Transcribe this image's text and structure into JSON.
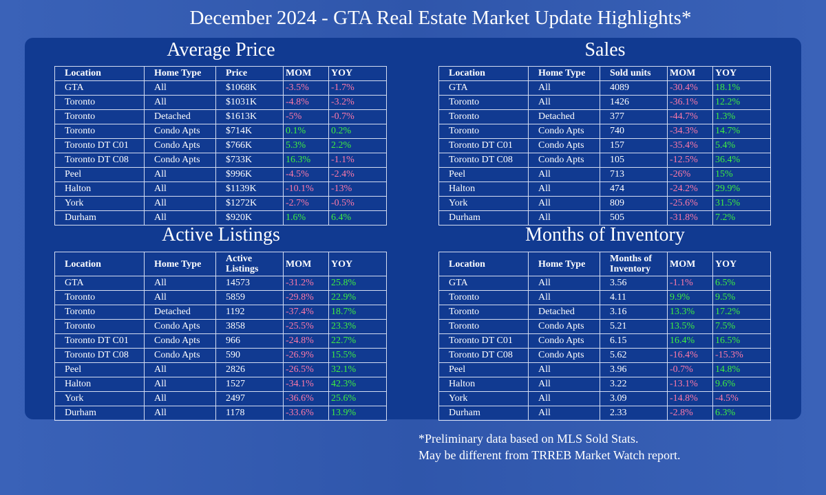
{
  "title": "December 2024 - GTA Real Estate Market Update Highlights*",
  "footnote": [
    "*Preliminary data based on MLS Sold Stats.",
    "May be different from TRREB Market Watch report."
  ],
  "colors": {
    "background": "#3a62b8",
    "panel": "#113a91",
    "positive": "#3ff03f",
    "negative": "#ff7aa8"
  },
  "tables": [
    {
      "id": "average-price",
      "title": "Average Price",
      "headers": [
        "Location",
        "Home Type",
        "Price",
        "MOM",
        "YOY"
      ],
      "rows": [
        [
          "GTA",
          "All",
          "$1068K",
          "-3.5%",
          "-1.7%"
        ],
        [
          "Toronto",
          "All",
          "$1031K",
          "-4.8%",
          "-3.2%"
        ],
        [
          "Toronto",
          "Detached",
          "$1613K",
          "-5%",
          "-0.7%"
        ],
        [
          "Toronto",
          "Condo Apts",
          "$714K",
          "0.1%",
          "0.2%"
        ],
        [
          "Toronto DT C01",
          "Condo Apts",
          "$766K",
          "5.3%",
          "2.2%"
        ],
        [
          "Toronto DT C08",
          "Condo Apts",
          "$733K",
          "16.3%",
          "-1.1%"
        ],
        [
          "Peel",
          "All",
          "$996K",
          "-4.5%",
          "-2.4%"
        ],
        [
          "Halton",
          "All",
          "$1139K",
          "-10.1%",
          "-13%"
        ],
        [
          "York",
          "All",
          "$1272K",
          "-2.7%",
          "-0.5%"
        ],
        [
          "Durham",
          "All",
          "$920K",
          "1.6%",
          "6.4%"
        ]
      ]
    },
    {
      "id": "sales",
      "title": "Sales",
      "headers": [
        "Location",
        "Home Type",
        "Sold units",
        "MOM",
        "YOY"
      ],
      "rows": [
        [
          "GTA",
          "All",
          "4089",
          "-30.4%",
          "18.1%"
        ],
        [
          "Toronto",
          "All",
          "1426",
          "-36.1%",
          "12.2%"
        ],
        [
          "Toronto",
          "Detached",
          "377",
          "-44.7%",
          "1.3%"
        ],
        [
          "Toronto",
          "Condo Apts",
          "740",
          "-34.3%",
          "14.7%"
        ],
        [
          "Toronto DT C01",
          "Condo Apts",
          "157",
          "-35.4%",
          "5.4%"
        ],
        [
          "Toronto DT C08",
          "Condo Apts",
          "105",
          "-12.5%",
          "36.4%"
        ],
        [
          "Peel",
          "All",
          "713",
          "-26%",
          "15%"
        ],
        [
          "Halton",
          "All",
          "474",
          "-24.2%",
          "29.9%"
        ],
        [
          "York",
          "All",
          "809",
          "-25.6%",
          "31.5%"
        ],
        [
          "Durham",
          "All",
          "505",
          "-31.8%",
          "7.2%"
        ]
      ]
    },
    {
      "id": "active-listings",
      "title": "Active Listings",
      "headers": [
        "Location",
        "Home Type",
        "Active Listings",
        "MOM",
        "YOY"
      ],
      "rows": [
        [
          "GTA",
          "All",
          "14573",
          "-31.2%",
          "25.8%"
        ],
        [
          "Toronto",
          "All",
          "5859",
          "-29.8%",
          "22.9%"
        ],
        [
          "Toronto",
          "Detached",
          "1192",
          "-37.4%",
          "18.7%"
        ],
        [
          "Toronto",
          "Condo Apts",
          "3858",
          "-25.5%",
          "23.3%"
        ],
        [
          "Toronto DT C01",
          "Condo Apts",
          "966",
          "-24.8%",
          "22.7%"
        ],
        [
          "Toronto DT C08",
          "Condo Apts",
          "590",
          "-26.9%",
          "15.5%"
        ],
        [
          "Peel",
          "All",
          "2826",
          "-26.5%",
          "32.1%"
        ],
        [
          "Halton",
          "All",
          "1527",
          "-34.1%",
          "42.3%"
        ],
        [
          "York",
          "All",
          "2497",
          "-36.6%",
          "25.6%"
        ],
        [
          "Durham",
          "All",
          "1178",
          "-33.6%",
          "13.9%"
        ]
      ]
    },
    {
      "id": "months-of-inventory",
      "title": "Months of Inventory",
      "headers": [
        "Location",
        "Home Type",
        "Months of Inventory",
        "MOM",
        "YOY"
      ],
      "rows": [
        [
          "GTA",
          "All",
          "3.56",
          "-1.1%",
          "6.5%"
        ],
        [
          "Toronto",
          "All",
          "4.11",
          "9.9%",
          "9.5%"
        ],
        [
          "Toronto",
          "Detached",
          "3.16",
          "13.3%",
          "17.2%"
        ],
        [
          "Toronto",
          "Condo Apts",
          "5.21",
          "13.5%",
          "7.5%"
        ],
        [
          "Toronto DT C01",
          "Condo Apts",
          "6.15",
          "16.4%",
          "16.5%"
        ],
        [
          "Toronto DT C08",
          "Condo Apts",
          "5.62",
          "-16.4%",
          "-15.3%"
        ],
        [
          "Peel",
          "All",
          "3.96",
          "-0.7%",
          "14.8%"
        ],
        [
          "Halton",
          "All",
          "3.22",
          "-13.1%",
          "9.6%"
        ],
        [
          "York",
          "All",
          "3.09",
          "-14.8%",
          "-4.5%"
        ],
        [
          "Durham",
          "All",
          "2.33",
          "-2.8%",
          "6.3%"
        ]
      ]
    }
  ]
}
